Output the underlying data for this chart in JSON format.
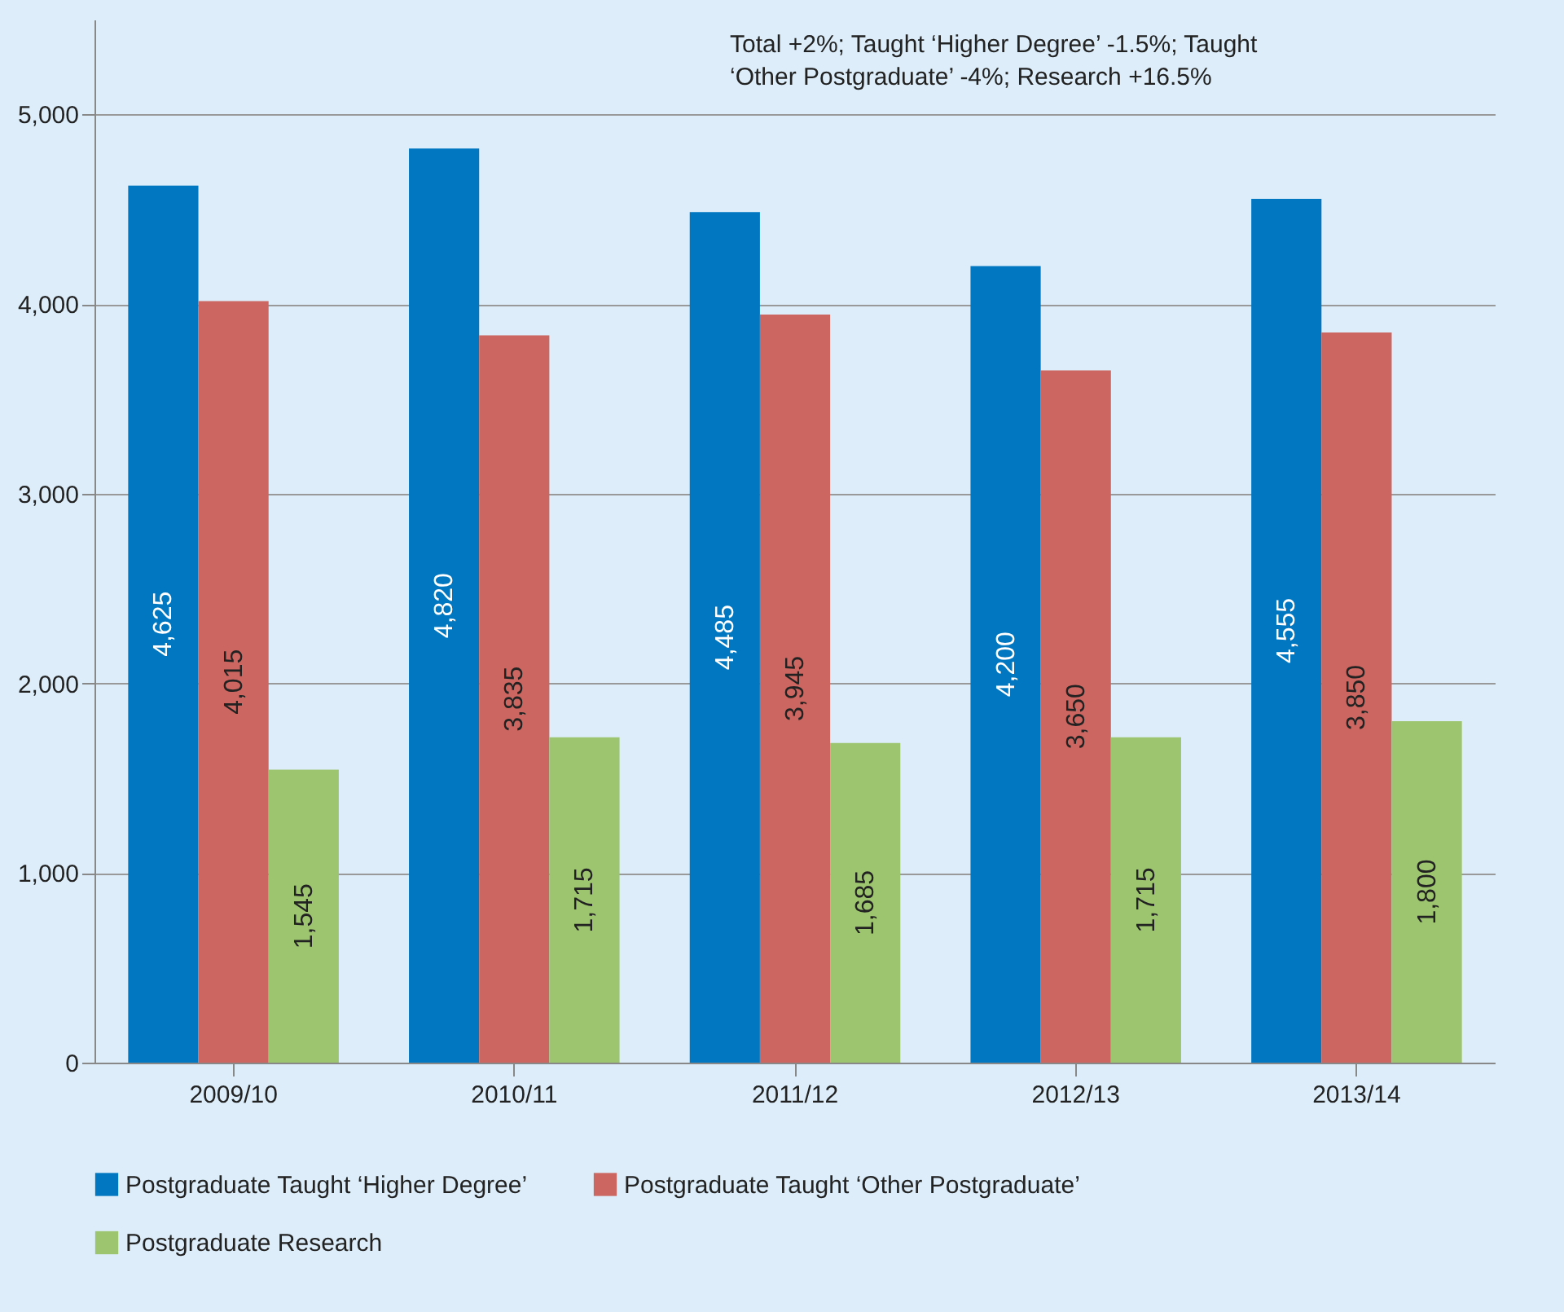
{
  "chart_data": {
    "type": "bar",
    "categories": [
      "2009/10",
      "2010/11",
      "2011/12",
      "2012/13",
      "2013/14"
    ],
    "series": [
      {
        "name": "Postgraduate Taught ‘Higher Degree’",
        "color": "#0077c0",
        "values": [
          4625,
          4820,
          4485,
          4200,
          4555
        ],
        "value_labels": [
          "4,625",
          "4,820",
          "4,485",
          "4,200",
          "4,555"
        ]
      },
      {
        "name": "Postgraduate Taught ‘Other Postgraduate’",
        "color": "#cc6660",
        "values": [
          4015,
          3835,
          3945,
          3650,
          3850
        ],
        "value_labels": [
          "4,015",
          "3,835",
          "3,945",
          "3,650",
          "3,850"
        ]
      },
      {
        "name": "Postgraduate Research",
        "color": "#9dc46f",
        "values": [
          1545,
          1715,
          1685,
          1715,
          1800
        ],
        "value_labels": [
          "1,545",
          "1,715",
          "1,685",
          "1,715",
          "1,800"
        ]
      }
    ],
    "ylim": [
      0,
      5500
    ],
    "yticks": [
      0,
      {
        "value": 1000,
        "label": "1,000"
      },
      {
        "value": 2000,
        "label": "2,000"
      },
      {
        "value": 3000,
        "label": "3,000"
      },
      {
        "value": 4000,
        "label": "4,000"
      },
      {
        "value": 5000,
        "label": "5,000"
      }
    ],
    "grid": "y",
    "legend": "bottom",
    "annotations": [
      "Total +2%; Taught ‘Higher Degree’ -1.5%; Taught ‘Other Postgraduate’ -4%; Research +16.5%"
    ]
  }
}
